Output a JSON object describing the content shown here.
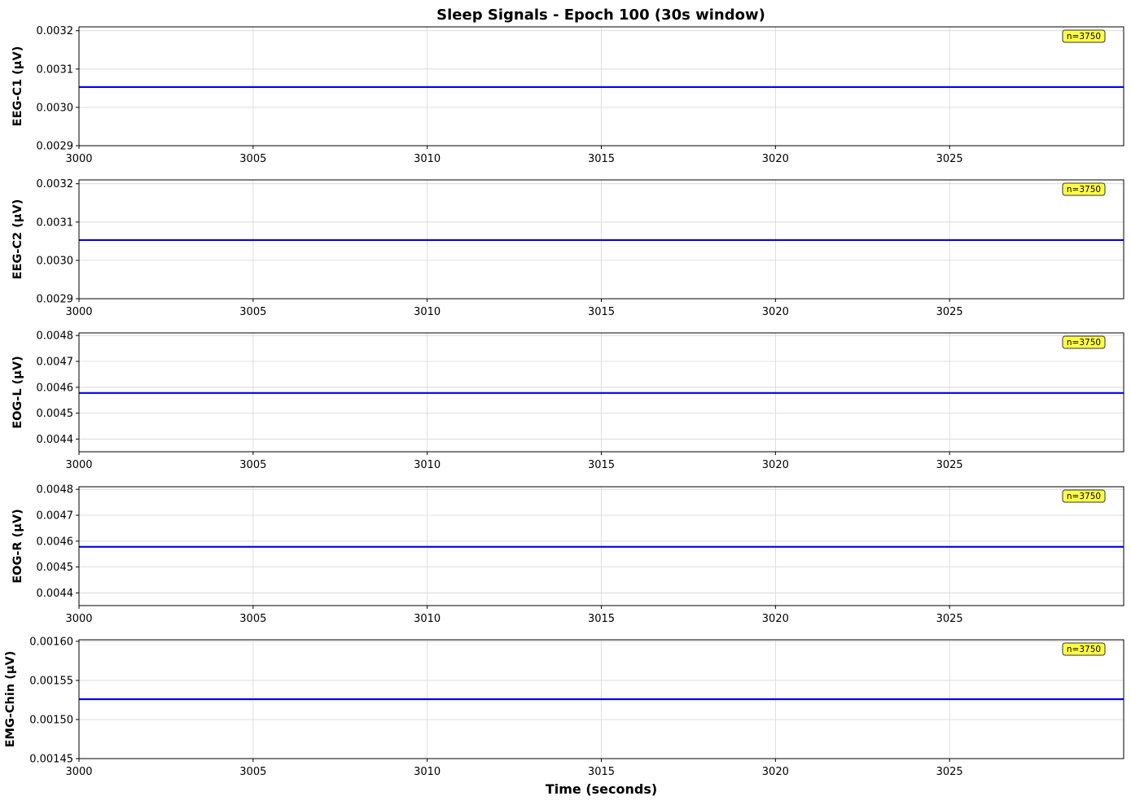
{
  "title": "Sleep Signals - Epoch 100 (30s window)",
  "colors": {
    "line": "#0000ee",
    "badge_fill": "#ffff44",
    "grid": "#d6d6d6",
    "axis": "#000000"
  },
  "chart_data": [
    {
      "type": "line",
      "ylabel": "EEG-C1 (µV)",
      "xlim": [
        3000,
        3030
      ],
      "ylim": [
        0.0029,
        0.00321
      ],
      "xticks": [
        "3000",
        "3005",
        "3010",
        "3015",
        "3020",
        "3025"
      ],
      "yticks": [
        "0.0029",
        "0.0030",
        "0.0031",
        "0.0032"
      ],
      "series": [
        {
          "x": [
            3000,
            3030
          ],
          "y": [
            0.003053,
            0.003053
          ]
        }
      ],
      "annotation": "n=3750",
      "grid": true
    },
    {
      "type": "line",
      "ylabel": "EEG-C2 (µV)",
      "xlim": [
        3000,
        3030
      ],
      "ylim": [
        0.0029,
        0.00321
      ],
      "xticks": [
        "3000",
        "3005",
        "3010",
        "3015",
        "3020",
        "3025"
      ],
      "yticks": [
        "0.0029",
        "0.0030",
        "0.0031",
        "0.0032"
      ],
      "series": [
        {
          "x": [
            3000,
            3030
          ],
          "y": [
            0.003053,
            0.003053
          ]
        }
      ],
      "annotation": "n=3750",
      "grid": true
    },
    {
      "type": "line",
      "ylabel": "EOG-L (µV)",
      "xlim": [
        3000,
        3030
      ],
      "ylim": [
        0.004351,
        0.00481
      ],
      "xticks": [
        "3000",
        "3005",
        "3010",
        "3015",
        "3020",
        "3025"
      ],
      "yticks": [
        "0.0044",
        "0.0045",
        "0.0046",
        "0.0047",
        "0.0048"
      ],
      "series": [
        {
          "x": [
            3000,
            3030
          ],
          "y": [
            0.004578,
            0.004578
          ]
        }
      ],
      "annotation": "n=3750",
      "grid": true
    },
    {
      "type": "line",
      "ylabel": "EOG-R (µV)",
      "xlim": [
        3000,
        3030
      ],
      "ylim": [
        0.004351,
        0.00481
      ],
      "xticks": [
        "3000",
        "3005",
        "3010",
        "3015",
        "3020",
        "3025"
      ],
      "yticks": [
        "0.0044",
        "0.0045",
        "0.0046",
        "0.0047",
        "0.0048"
      ],
      "series": [
        {
          "x": [
            3000,
            3030
          ],
          "y": [
            0.004578,
            0.004578
          ]
        }
      ],
      "annotation": "n=3750",
      "grid": true
    },
    {
      "type": "line",
      "ylabel": "EMG-Chin (µV)",
      "xlim": [
        3000,
        3030
      ],
      "ylim": [
        0.00145,
        0.001602
      ],
      "xticks": [
        "3000",
        "3005",
        "3010",
        "3015",
        "3020",
        "3025"
      ],
      "yticks": [
        "0.00145",
        "0.00150",
        "0.00155",
        "0.00160"
      ],
      "series": [
        {
          "x": [
            3000,
            3030
          ],
          "y": [
            0.001526,
            0.001526
          ]
        }
      ],
      "annotation": "n=3750",
      "grid": true,
      "xlabel": "Time (seconds)"
    }
  ]
}
